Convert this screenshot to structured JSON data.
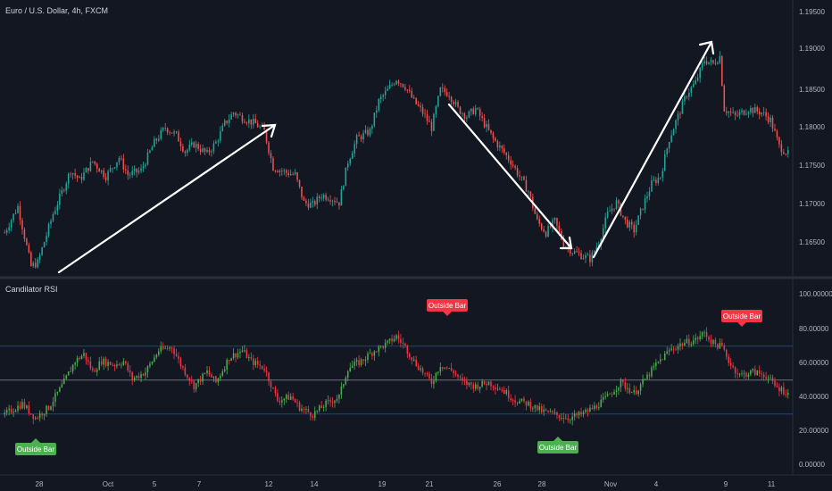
{
  "chart_data": [
    {
      "type": "candlestick",
      "title": "Euro / U.S. Dollar, 4h, FXCM",
      "ylim": [
        1.1605,
        1.1975
      ],
      "y_ticks": [
        "1.19500",
        "1.19000",
        "1.18500",
        "1.18000",
        "1.17500",
        "1.17000",
        "1.16500"
      ],
      "x_ticks": [
        "28",
        "Oct",
        "5",
        "7",
        "12",
        "14",
        "19",
        "21",
        "26",
        "28",
        "Nov",
        "4",
        "9",
        "11"
      ],
      "close_path": [
        [
          0,
          1.1665
        ],
        [
          6,
          1.17
        ],
        [
          12,
          1.162
        ],
        [
          15,
          1.1625
        ],
        [
          22,
          1.169
        ],
        [
          30,
          1.1748
        ],
        [
          34,
          1.1735
        ],
        [
          40,
          1.176
        ],
        [
          46,
          1.174
        ],
        [
          52,
          1.1765
        ],
        [
          56,
          1.1742
        ],
        [
          62,
          1.1748
        ],
        [
          68,
          1.1785
        ],
        [
          73,
          1.1805
        ],
        [
          78,
          1.1795
        ],
        [
          82,
          1.1773
        ],
        [
          86,
          1.1783
        ],
        [
          92,
          1.177
        ],
        [
          96,
          1.1785
        ],
        [
          100,
          1.181
        ],
        [
          104,
          1.1825
        ],
        [
          108,
          1.1818
        ],
        [
          114,
          1.181
        ],
        [
          118,
          1.18
        ],
        [
          122,
          1.1752
        ],
        [
          128,
          1.1745
        ],
        [
          132,
          1.1742
        ],
        [
          136,
          1.1705
        ],
        [
          140,
          1.1702
        ],
        [
          144,
          1.1715
        ],
        [
          148,
          1.1712
        ],
        [
          152,
          1.1705
        ],
        [
          156,
          1.176
        ],
        [
          160,
          1.179
        ],
        [
          166,
          1.18
        ],
        [
          170,
          1.184
        ],
        [
          174,
          1.1855
        ],
        [
          178,
          1.187
        ],
        [
          182,
          1.186
        ],
        [
          186,
          1.184
        ],
        [
          190,
          1.1825
        ],
        [
          194,
          1.1805
        ],
        [
          198,
          1.1855
        ],
        [
          202,
          1.185
        ],
        [
          206,
          1.183
        ],
        [
          210,
          1.182
        ],
        [
          214,
          1.183
        ],
        [
          218,
          1.181
        ],
        [
          222,
          1.179
        ],
        [
          226,
          1.1775
        ],
        [
          230,
          1.176
        ],
        [
          234,
          1.174
        ],
        [
          238,
          1.172
        ],
        [
          242,
          1.168
        ],
        [
          246,
          1.1665
        ],
        [
          250,
          1.168
        ],
        [
          254,
          1.165
        ],
        [
          258,
          1.164
        ],
        [
          262,
          1.1635
        ],
        [
          266,
          1.163
        ],
        [
          270,
          1.1652
        ],
        [
          274,
          1.169
        ],
        [
          278,
          1.1705
        ],
        [
          282,
          1.168
        ],
        [
          286,
          1.1668
        ],
        [
          290,
          1.17
        ],
        [
          294,
          1.173
        ],
        [
          298,
          1.174
        ],
        [
          302,
          1.179
        ],
        [
          306,
          1.182
        ],
        [
          310,
          1.185
        ],
        [
          314,
          1.1865
        ],
        [
          318,
          1.1895
        ],
        [
          322,
          1.189
        ],
        [
          325,
          1.19
        ],
        [
          327,
          1.183
        ],
        [
          332,
          1.182
        ],
        [
          338,
          1.183
        ],
        [
          344,
          1.1825
        ],
        [
          348,
          1.1815
        ],
        [
          352,
          1.178
        ],
        [
          356,
          1.177
        ]
      ],
      "annotations": [
        "arrow-up",
        "arrow-up",
        "arrow-down",
        "arrow-up"
      ]
    },
    {
      "type": "candlestick",
      "title": "Candilator RSI",
      "ylim": [
        -2,
        108
      ],
      "y_ticks": [
        "100.00000",
        "80.00000",
        "60.00000",
        "40.00000",
        "20.00000",
        "0.00000"
      ],
      "levels": [
        70,
        50,
        30
      ],
      "close_path": [
        [
          0,
          32
        ],
        [
          8,
          38
        ],
        [
          14,
          30
        ],
        [
          20,
          36
        ],
        [
          26,
          48
        ],
        [
          32,
          62
        ],
        [
          36,
          66
        ],
        [
          40,
          56
        ],
        [
          44,
          62
        ],
        [
          50,
          60
        ],
        [
          54,
          62
        ],
        [
          58,
          52
        ],
        [
          64,
          56
        ],
        [
          70,
          68
        ],
        [
          76,
          70
        ],
        [
          80,
          60
        ],
        [
          86,
          48
        ],
        [
          92,
          56
        ],
        [
          96,
          50
        ],
        [
          102,
          64
        ],
        [
          108,
          68
        ],
        [
          112,
          62
        ],
        [
          118,
          58
        ],
        [
          124,
          40
        ],
        [
          130,
          42
        ],
        [
          134,
          36
        ],
        [
          140,
          32
        ],
        [
          146,
          38
        ],
        [
          152,
          42
        ],
        [
          156,
          58
        ],
        [
          162,
          62
        ],
        [
          168,
          68
        ],
        [
          174,
          72
        ],
        [
          178,
          76
        ],
        [
          182,
          70
        ],
        [
          186,
          62
        ],
        [
          190,
          56
        ],
        [
          194,
          50
        ],
        [
          198,
          60
        ],
        [
          204,
          56
        ],
        [
          208,
          50
        ],
        [
          214,
          48
        ],
        [
          220,
          50
        ],
        [
          226,
          46
        ],
        [
          232,
          40
        ],
        [
          238,
          38
        ],
        [
          244,
          34
        ],
        [
          250,
          32
        ],
        [
          256,
          30
        ],
        [
          262,
          32
        ],
        [
          268,
          36
        ],
        [
          274,
          42
        ],
        [
          280,
          50
        ],
        [
          286,
          44
        ],
        [
          290,
          50
        ],
        [
          296,
          60
        ],
        [
          302,
          68
        ],
        [
          308,
          72
        ],
        [
          314,
          74
        ],
        [
          318,
          78
        ],
        [
          322,
          72
        ],
        [
          326,
          70
        ],
        [
          330,
          60
        ],
        [
          334,
          54
        ],
        [
          340,
          56
        ],
        [
          346,
          54
        ],
        [
          350,
          48
        ],
        [
          356,
          44
        ]
      ],
      "labels": [
        {
          "text": "Outside Bar",
          "color": "#f23645",
          "value": 88
        },
        {
          "text": "Outside Bar",
          "color": "#f23645",
          "value": 86
        },
        {
          "text": "Outside Bar",
          "color": "#4caf50",
          "value": 14
        },
        {
          "text": "Outside Bar",
          "color": "#4caf50",
          "value": 10
        }
      ]
    }
  ],
  "colors": {
    "up": "#26a69a",
    "down": "#ef5350",
    "rsi_up": "#4caf50",
    "rsi_down": "#f23645",
    "bg": "#131722",
    "text": "#b2b5be",
    "level": "#2962ff"
  }
}
